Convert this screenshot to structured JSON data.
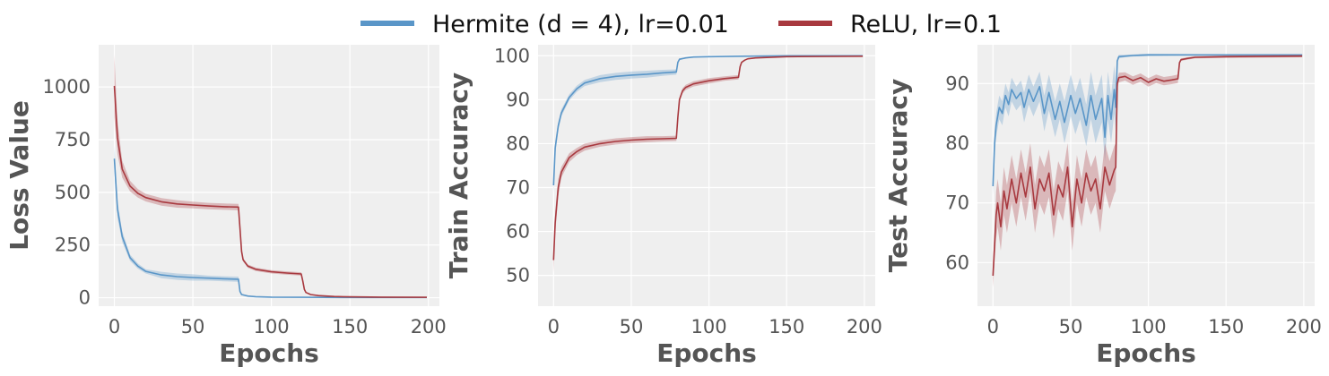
{
  "legend": [
    {
      "label": "Hermite ($d = 4$), lr=0.01",
      "display": "Hermite (d = 4), lr=0.01",
      "color": "#5a96c8"
    },
    {
      "label": "ReLU, lr=0.1",
      "display": "ReLU, lr=0.1",
      "color": "#a8393f"
    }
  ],
  "style": {
    "plot_background": "#efefef",
    "grid_color": "#ffffff",
    "band_opacity": 0.3
  },
  "chart_data": [
    {
      "type": "line",
      "xlabel": "Epochs",
      "ylabel": "Loss Value",
      "xlim": [
        -10,
        207
      ],
      "ylim": [
        -40,
        1200
      ],
      "xticks": [
        0,
        50,
        100,
        150,
        200
      ],
      "yticks": [
        0,
        250,
        500,
        750,
        1000
      ],
      "grid": true,
      "series": [
        {
          "name": "Hermite ($d = 4$), lr=0.01",
          "x": [
            0,
            2,
            5,
            10,
            15,
            20,
            30,
            40,
            50,
            60,
            70,
            79,
            80,
            81,
            85,
            90,
            100,
            120,
            150,
            199
          ],
          "y": [
            660,
            420,
            290,
            190,
            150,
            125,
            108,
            100,
            96,
            93,
            90,
            88,
            30,
            15,
            8,
            5,
            3,
            2,
            1,
            1
          ],
          "band": [
            60,
            40,
            25,
            15,
            12,
            10,
            15,
            15,
            15,
            12,
            12,
            12,
            5,
            3,
            2,
            1,
            1,
            1,
            1,
            1
          ]
        },
        {
          "name": "ReLU, lr=0.1",
          "x": [
            0,
            2,
            5,
            10,
            15,
            20,
            30,
            40,
            50,
            60,
            70,
            79,
            80,
            81,
            82,
            85,
            90,
            100,
            110,
            119,
            120,
            121,
            122,
            125,
            130,
            140,
            150,
            170,
            199
          ],
          "y": [
            1005,
            760,
            610,
            530,
            495,
            475,
            455,
            445,
            440,
            435,
            432,
            430,
            330,
            220,
            180,
            150,
            135,
            123,
            117,
            113,
            80,
            40,
            25,
            15,
            10,
            6,
            4,
            3,
            2
          ],
          "band": [
            150,
            80,
            40,
            25,
            20,
            18,
            18,
            18,
            16,
            15,
            15,
            15,
            10,
            10,
            8,
            8,
            8,
            8,
            8,
            8,
            5,
            3,
            2,
            2,
            1,
            1,
            1,
            1,
            1
          ]
        }
      ]
    },
    {
      "type": "line",
      "xlabel": "Epochs",
      "ylabel": "Train Accuracy",
      "xlim": [
        -10,
        207
      ],
      "ylim": [
        43,
        102.5
      ],
      "xticks": [
        0,
        50,
        100,
        150,
        200
      ],
      "yticks": [
        50,
        60,
        70,
        80,
        90,
        100
      ],
      "grid": true,
      "series": [
        {
          "name": "Hermite ($d = 4$), lr=0.01",
          "x": [
            0,
            1,
            3,
            5,
            10,
            15,
            20,
            30,
            40,
            50,
            60,
            70,
            79,
            80,
            81,
            85,
            90,
            100,
            120,
            150,
            199
          ],
          "y": [
            70.5,
            79,
            84,
            87,
            90.5,
            92.5,
            93.8,
            94.8,
            95.3,
            95.6,
            95.8,
            96.1,
            96.3,
            98.5,
            99.2,
            99.5,
            99.7,
            99.8,
            99.9,
            100,
            100
          ],
          "band": [
            2,
            1.5,
            1,
            0.8,
            0.7,
            0.7,
            0.7,
            0.8,
            0.8,
            0.8,
            0.8,
            0.7,
            0.6,
            0.3,
            0.2,
            0.1,
            0.1,
            0.1,
            0.1,
            0.05,
            0.05
          ]
        },
        {
          "name": "ReLU, lr=0.1",
          "x": [
            0,
            1,
            3,
            5,
            10,
            15,
            20,
            30,
            40,
            50,
            60,
            70,
            79,
            80,
            81,
            83,
            85,
            90,
            100,
            110,
            119,
            120,
            121,
            123,
            125,
            130,
            150,
            199
          ],
          "y": [
            53.5,
            62,
            70,
            73.5,
            76.8,
            78.2,
            79.2,
            80,
            80.5,
            80.8,
            81,
            81.1,
            81.2,
            86,
            90,
            92,
            92.8,
            93.6,
            94.3,
            94.8,
            95.1,
            97.5,
            98.5,
            99,
            99.3,
            99.5,
            99.8,
            99.9
          ],
          "band": [
            3,
            2.5,
            2,
            1.2,
            1,
            0.8,
            0.8,
            0.7,
            0.7,
            0.7,
            0.7,
            0.6,
            0.6,
            0.5,
            0.5,
            0.6,
            0.6,
            0.6,
            0.6,
            0.5,
            0.5,
            0.3,
            0.2,
            0.1,
            0.1,
            0.1,
            0.05,
            0.05
          ]
        }
      ]
    },
    {
      "type": "line",
      "xlabel": "Epochs",
      "ylabel": "Test Accuracy",
      "xlim": [
        -10,
        207
      ],
      "ylim": [
        52.7,
        96.5
      ],
      "xticks": [
        0,
        50,
        100,
        150,
        200
      ],
      "yticks": [
        60,
        70,
        80,
        90
      ],
      "grid": true,
      "series": [
        {
          "name": "Hermite ($d = 4$), lr=0.01",
          "x": [
            0,
            1,
            2,
            4,
            6,
            8,
            10,
            12,
            15,
            18,
            20,
            23,
            26,
            30,
            33,
            36,
            40,
            43,
            46,
            50,
            53,
            56,
            60,
            63,
            66,
            70,
            72,
            74,
            76,
            78,
            79,
            80,
            81,
            85,
            90,
            100,
            120,
            150,
            199
          ],
          "y": [
            72.8,
            80,
            83,
            86,
            85,
            88,
            86.5,
            89,
            87.5,
            88.5,
            86,
            89,
            87,
            89.5,
            85,
            88.5,
            84,
            87,
            83.5,
            88,
            85,
            87.5,
            83,
            88,
            84,
            87.5,
            81,
            88,
            84,
            89,
            86,
            93.8,
            94.5,
            94.6,
            94.7,
            94.8,
            94.8,
            94.8,
            94.8
          ],
          "band": [
            1.5,
            2,
            2,
            2,
            2,
            2,
            2,
            2,
            2,
            2,
            2.5,
            2.5,
            2.5,
            2.5,
            3,
            3,
            3,
            3,
            3.5,
            3.5,
            3.5,
            3.5,
            3.5,
            4,
            4,
            4,
            4,
            4,
            4,
            4,
            4,
            0.5,
            0.3,
            0.2,
            0.2,
            0.2,
            0.15,
            0.1,
            0.1
          ]
        },
        {
          "name": "ReLU, lr=0.1",
          "x": [
            0,
            1,
            2,
            3,
            5,
            7,
            9,
            12,
            15,
            18,
            21,
            24,
            27,
            30,
            33,
            36,
            39,
            42,
            45,
            48,
            51,
            54,
            57,
            60,
            63,
            66,
            69,
            72,
            75,
            78,
            79,
            80,
            81,
            85,
            90,
            95,
            100,
            105,
            110,
            115,
            119,
            120,
            121,
            125,
            130,
            150,
            199
          ],
          "y": [
            57.8,
            63,
            68,
            70,
            66,
            72,
            69,
            74,
            70,
            75,
            71,
            76,
            69,
            74,
            72,
            75,
            68,
            73,
            71,
            76,
            66,
            74,
            70,
            75,
            72,
            74,
            69,
            76,
            73,
            75.5,
            76,
            90,
            91,
            91.2,
            90.5,
            91,
            90.2,
            90.8,
            90.4,
            90.6,
            90.8,
            93.5,
            94,
            94.2,
            94.4,
            94.5,
            94.6
          ],
          "band": [
            2,
            3,
            4,
            4,
            4,
            4,
            4,
            4,
            4,
            4,
            4,
            4,
            4,
            4,
            4,
            4,
            4,
            4,
            4,
            4,
            4,
            4,
            4,
            4,
            4,
            4,
            4,
            4,
            4,
            4,
            4,
            0.8,
            0.8,
            0.7,
            0.7,
            0.7,
            0.7,
            0.7,
            0.7,
            0.7,
            0.7,
            0.3,
            0.2,
            0.2,
            0.2,
            0.2,
            0.2
          ]
        }
      ]
    }
  ]
}
